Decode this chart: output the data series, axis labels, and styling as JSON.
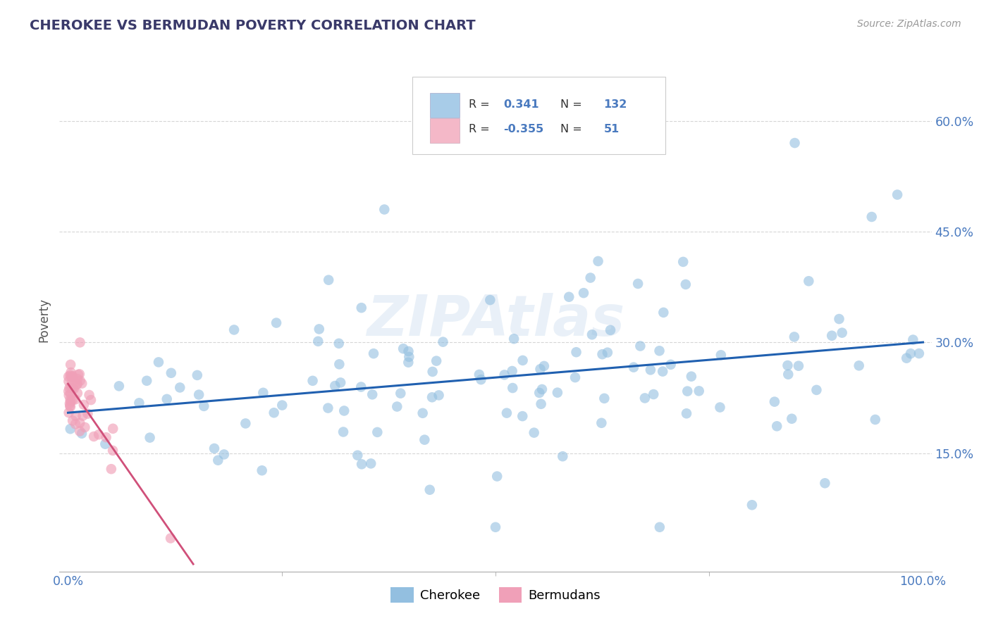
{
  "title": "CHEROKEE VS BERMUDAN POVERTY CORRELATION CHART",
  "source": "Source: ZipAtlas.com",
  "ylabel_label": "Poverty",
  "watermark": "ZIPAtlas",
  "cherokee_color": "#93bfe0",
  "bermuda_color": "#f0a0b8",
  "cherokee_line_color": "#2060b0",
  "bermuda_line_color": "#d0507a",
  "background_color": "#ffffff",
  "grid_color": "#cccccc",
  "title_color": "#3a3a6a",
  "tick_color": "#4a7abf",
  "legend_cherokee_color": "#a8cce8",
  "legend_bermuda_color": "#f4b8c8",
  "cherokee_R": 0.341,
  "cherokee_N": 132,
  "bermuda_R": -0.355,
  "bermuda_N": 51,
  "xlim": [
    0,
    100
  ],
  "ylim": [
    0,
    65
  ],
  "ytick_pct_vals": [
    15,
    30,
    45,
    60
  ],
  "ytick_pct_labels": [
    "15.0%",
    "30.0%",
    "45.0%",
    "60.0%"
  ],
  "xtick_vals": [
    0,
    100
  ],
  "xtick_labels": [
    "0.0%",
    "100.0%"
  ]
}
